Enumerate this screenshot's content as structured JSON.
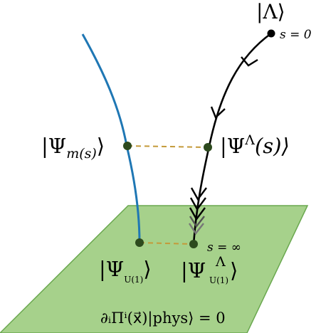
{
  "labels": {
    "lambda_state": "|Λ⟩",
    "s_zero": "s = 0",
    "psi_m": "|Ψ",
    "psi_m_sub": "m(s)",
    "psi_m_close": "⟩",
    "psi_lambda": "|Ψ",
    "psi_lambda_sup": "Λ",
    "psi_lambda_rest": "(s)⟩",
    "s_inf": "s = ∞",
    "psi_u1": "|Ψ",
    "psi_u1_sub": "U(1)",
    "psi_u1_close": "⟩",
    "psi_u1_lambda": "|Ψ",
    "psi_u1_lambda_sup": "Λ",
    "psi_u1_lambda_sub": "U(1)",
    "psi_u1_lambda_close": "⟩",
    "constraint": "∂ᵢΠⁱ(x⃗)|phys⟩ = 0"
  },
  "colors": {
    "plane_fill": "#a6d18b",
    "plane_stroke": "#6aa84f",
    "blue_curve": "#1f77b4",
    "black_curve": "#000000",
    "dashed": "#c49a3a",
    "node": "#2d4a1e"
  }
}
